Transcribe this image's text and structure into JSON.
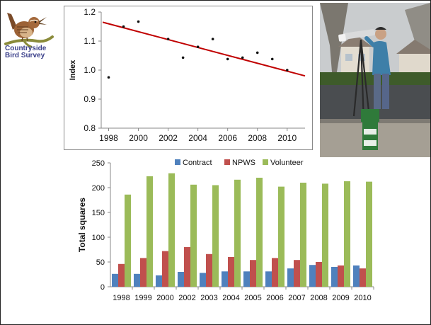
{
  "logo": {
    "line1": "Countryside",
    "line2": "Bird Survey"
  },
  "chart_data": [
    {
      "type": "scatter",
      "x": [
        1998,
        1999,
        2000,
        2002,
        2003,
        2004,
        2005,
        2006,
        2007,
        2008,
        2009,
        2010
      ],
      "y": [
        0.975,
        1.15,
        1.167,
        1.107,
        1.043,
        1.08,
        1.107,
        1.038,
        1.043,
        1.06,
        1.038,
        1.0
      ],
      "trendline": {
        "from": [
          1997.6,
          1.165
        ],
        "to": [
          2011.2,
          0.98
        ],
        "color": "#c00000"
      },
      "ylabel": "Index",
      "xlim": [
        1997.5,
        2011.2
      ],
      "ylim": [
        0.8,
        1.2
      ],
      "xticks": [
        1998,
        2000,
        2002,
        2004,
        2006,
        2008,
        2010
      ],
      "yticks": [
        0.8,
        0.9,
        1.0,
        1.1,
        1.2
      ],
      "yticklabels": [
        "0.8",
        "0.9",
        "1.0",
        "1.1",
        "1.2"
      ],
      "grid": false
    },
    {
      "type": "bar",
      "categories": [
        "1998",
        "1999",
        "2000",
        "2002",
        "2003",
        "2004",
        "2005",
        "2006",
        "2007",
        "2008",
        "2009",
        "2010"
      ],
      "series": [
        {
          "name": "Contract",
          "color": "#4f81bd",
          "values": [
            26,
            26,
            23,
            30,
            28,
            31,
            31,
            31,
            37,
            44,
            40,
            43
          ]
        },
        {
          "name": "NPWS",
          "color": "#c0504d",
          "values": [
            46,
            58,
            72,
            80,
            66,
            60,
            54,
            58,
            54,
            50,
            43,
            37
          ]
        },
        {
          "name": "Volunteer",
          "color": "#9bbb59",
          "values": [
            186,
            223,
            229,
            206,
            205,
            216,
            220,
            202,
            210,
            208,
            213,
            212
          ]
        }
      ],
      "ylabel": "Total squares",
      "ylim": [
        0,
        250
      ],
      "yticks": [
        0,
        50,
        100,
        150,
        200,
        250
      ],
      "legend": "top"
    }
  ]
}
